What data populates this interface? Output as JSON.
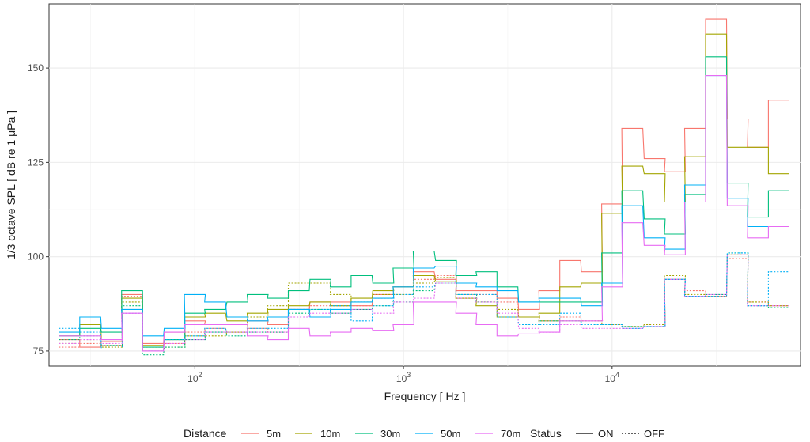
{
  "chart_data": {
    "type": "line",
    "subtype": "step",
    "xlabel": "Frequency [ Hz ]",
    "ylabel": "1/3 octave SPL [ dB re 1 μPa ]",
    "xscale": "log",
    "xlim": [
      20,
      80000
    ],
    "ylim": [
      71,
      167
    ],
    "x_ticks": [
      {
        "value": 100,
        "base": "10",
        "exp": "2"
      },
      {
        "value": 1000,
        "base": "10",
        "exp": "3"
      },
      {
        "value": 10000,
        "base": "10",
        "exp": "4"
      }
    ],
    "y_ticks": [
      75,
      100,
      125,
      150
    ],
    "grid": true,
    "legend_position": "bottom",
    "legend": {
      "color_title": "Distance",
      "linetype_title": "Status",
      "linetypes": [
        {
          "label": "ON",
          "style": "solid"
        },
        {
          "label": "OFF",
          "style": "dotted"
        }
      ]
    },
    "x": [
      25,
      31.5,
      40,
      50,
      63,
      80,
      100,
      125,
      160,
      200,
      250,
      315,
      400,
      500,
      630,
      800,
      1000,
      1250,
      1600,
      2000,
      2500,
      3150,
      4000,
      5000,
      6300,
      8000,
      10000,
      12500,
      16000,
      20000,
      25000,
      31500,
      40000,
      50000,
      63000
    ],
    "series": [
      {
        "name": "5m",
        "status": "ON",
        "color": "#F8766D",
        "values": [
          78,
          76,
          77.5,
          90,
          77,
          80,
          83,
          82,
          82,
          83,
          82,
          86,
          88,
          88,
          87,
          90,
          92,
          96,
          94,
          91,
          91,
          89,
          86,
          91,
          99,
          96,
          114,
          134,
          126,
          122.5,
          134,
          163,
          136.5,
          129,
          141.5
        ]
      },
      {
        "name": "5m",
        "status": "OFF",
        "color": "#F8766D",
        "values": [
          76,
          77,
          76.5,
          89.5,
          76,
          77,
          80,
          81,
          80,
          81,
          80,
          86,
          87,
          87,
          87,
          89,
          92,
          94,
          95,
          90,
          90,
          88,
          84,
          83,
          84,
          83,
          82,
          81.5,
          82,
          94,
          91,
          89.5,
          99.5,
          88,
          87
        ]
      },
      {
        "name": "10m",
        "status": "ON",
        "color": "#A3A500",
        "values": [
          79,
          82,
          78,
          89,
          76.5,
          78,
          84,
          85,
          83,
          85,
          86,
          87,
          88,
          87,
          89,
          91,
          92,
          95,
          93.5,
          89,
          87,
          84,
          84,
          85,
          92,
          93,
          111.5,
          124,
          122,
          114.5,
          126.5,
          159,
          129,
          129,
          122
        ]
      },
      {
        "name": "10m",
        "status": "OFF",
        "color": "#A3A500",
        "values": [
          77,
          78,
          76,
          88,
          75,
          76,
          79,
          79,
          80,
          84,
          87,
          93,
          93,
          90,
          88,
          90,
          90,
          93,
          94.5,
          89,
          88,
          86,
          84,
          83,
          83,
          83,
          82,
          81.5,
          82,
          95,
          90,
          89.5,
          100.5,
          88,
          87
        ]
      },
      {
        "name": "30m",
        "status": "ON",
        "color": "#00BF7D",
        "values": [
          79,
          81,
          80,
          91,
          76,
          78,
          85,
          86,
          88,
          90,
          89,
          91,
          94,
          92,
          95,
          93,
          97,
          101.5,
          99,
          95,
          96,
          92,
          88,
          88,
          88,
          88,
          101,
          117.5,
          110,
          106,
          116.5,
          153,
          119.5,
          110.5,
          117.5
        ]
      },
      {
        "name": "30m",
        "status": "OFF",
        "color": "#00BF7D",
        "values": [
          78,
          79,
          76.5,
          87,
          74,
          76,
          78,
          80,
          79,
          80,
          80,
          85,
          86,
          85,
          86,
          87,
          88,
          91,
          93,
          90,
          88,
          84,
          82,
          83,
          83,
          82,
          82,
          81.5,
          81.5,
          94,
          89.5,
          90,
          101,
          87,
          86.5
        ]
      },
      {
        "name": "50m",
        "status": "ON",
        "color": "#00B0F6",
        "values": [
          80,
          84,
          81,
          86,
          79,
          81,
          90,
          88,
          84,
          83,
          84,
          86,
          84,
          86,
          88,
          89,
          92,
          97,
          97.5,
          93,
          92,
          91,
          88,
          89,
          89,
          87,
          93,
          113.5,
          105,
          102,
          119,
          148,
          115.5,
          108,
          108
        ]
      },
      {
        "name": "50m",
        "status": "OFF",
        "color": "#00B0F6",
        "values": [
          81,
          80,
          75.5,
          85,
          75,
          78,
          79,
          81,
          80,
          81,
          81,
          86,
          86,
          87,
          83,
          87,
          90,
          92,
          93,
          90,
          90,
          84,
          82,
          82,
          85,
          82,
          82,
          81,
          81.5,
          94,
          89.5,
          89.5,
          101,
          87,
          96
        ]
      },
      {
        "name": "70m",
        "status": "ON",
        "color": "#E76BF3",
        "values": [
          79,
          79,
          78,
          85,
          75,
          80,
          82,
          82,
          82,
          79,
          78,
          81,
          79,
          80,
          81,
          80.5,
          82,
          88,
          88,
          85,
          82,
          79,
          79.5,
          80,
          83,
          83,
          92,
          109,
          103,
          100.5,
          114.5,
          148,
          113.5,
          105,
          108
        ]
      },
      {
        "name": "70m",
        "status": "OFF",
        "color": "#E76BF3",
        "values": [
          77,
          78,
          77,
          85,
          75,
          77,
          78,
          80,
          80,
          80,
          80,
          84,
          85,
          85,
          86,
          85,
          88,
          89,
          93,
          89,
          88,
          85,
          81,
          80,
          82,
          81,
          81,
          81,
          81.5,
          94,
          89.5,
          90,
          100.5,
          87,
          87
        ]
      }
    ]
  }
}
